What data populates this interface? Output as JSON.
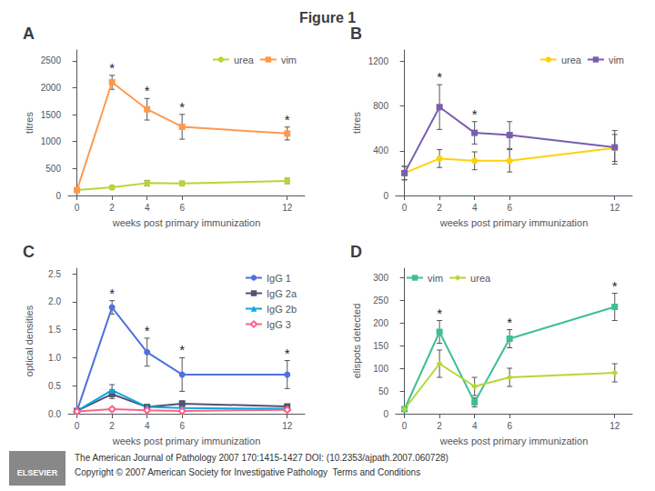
{
  "title": "Figure 1",
  "annotations": [
    "ELSEVIER",
    "The American Journal of Pathology 2007 170:1415-1427 DOI: (10.2353/ajpath.2007.060728)",
    "Copyright © 2007 American Society for Investigative Pathology  Terms and Conditions"
  ],
  "chart_data": [
    {
      "type": "line",
      "title": "A",
      "xlabel": "weeks post primary immunization",
      "ylabel": "titres",
      "x": [
        0,
        2,
        4,
        6,
        12
      ],
      "xlim": [
        -0.5,
        13
      ],
      "xticks": [
        0,
        2,
        4,
        6,
        12
      ],
      "ylim": [
        0,
        2700
      ],
      "yticks": [
        0,
        500,
        1000,
        1500,
        2000,
        2500
      ],
      "grid": false,
      "legend": "upper right",
      "series": [
        {
          "name": "urea",
          "marker": "circle",
          "values": [
            100,
            150,
            230,
            225,
            270
          ],
          "errors": [
            30,
            30,
            50,
            40,
            50
          ]
        },
        {
          "name": "vim",
          "marker": "square",
          "values": [
            100,
            2100,
            1600,
            1275,
            1150
          ],
          "errors": [
            30,
            130,
            200,
            230,
            120
          ],
          "annotations": [
            null,
            "*",
            "*",
            "*",
            "*"
          ]
        }
      ]
    },
    {
      "type": "line",
      "title": "B",
      "xlabel": "weeks post primary immunization",
      "ylabel": "titres",
      "x": [
        0,
        2,
        4,
        6,
        12
      ],
      "xlim": [
        -0.5,
        13
      ],
      "xticks": [
        0,
        2,
        4,
        6,
        12
      ],
      "ylim": [
        0,
        1300
      ],
      "yticks": [
        0,
        400,
        800,
        1200
      ],
      "grid": false,
      "legend": "upper right",
      "series": [
        {
          "name": "urea",
          "marker": "circle",
          "values": [
            200,
            330,
            310,
            310,
            425
          ],
          "errors": [
            60,
            80,
            80,
            100,
            120
          ]
        },
        {
          "name": "vim",
          "marker": "square",
          "values": [
            200,
            790,
            560,
            540,
            430
          ],
          "errors": [
            60,
            200,
            100,
            120,
            150
          ],
          "annotations": [
            null,
            "*",
            "*",
            null,
            null
          ]
        }
      ]
    },
    {
      "type": "line",
      "title": "C",
      "xlabel": "weeks post primary immunization",
      "ylabel": "optical densities",
      "x": [
        0,
        2,
        4,
        6,
        12
      ],
      "xlim": [
        -0.5,
        13
      ],
      "xticks": [
        0,
        2,
        4,
        6,
        12
      ],
      "ylim": [
        0,
        2.6
      ],
      "yticks": [
        {
          "value": 0,
          "label": "0.0"
        },
        0.5,
        {
          "value": 1,
          "label": "1.0"
        },
        1.5,
        {
          "value": 2,
          "label": "2.0"
        },
        2.5
      ],
      "grid": false,
      "legend": "upper right",
      "series": [
        {
          "name": "IgG 1",
          "marker": "circle",
          "values": [
            0.05,
            1.9,
            1.1,
            0.7,
            0.7
          ],
          "errors": [
            0.02,
            0.12,
            0.25,
            0.3,
            0.25
          ],
          "annotations": [
            null,
            "*",
            "*",
            "*",
            "*"
          ]
        },
        {
          "name": "IgG 2a",
          "marker": "square",
          "values": [
            0.05,
            0.35,
            0.12,
            0.18,
            0.13
          ],
          "errors": [
            0.02,
            0.08,
            0.04,
            0.05,
            0.04
          ]
        },
        {
          "name": "IgG 2b",
          "marker": "triangle",
          "values": [
            0.05,
            0.42,
            0.12,
            0.1,
            0.09
          ],
          "errors": [
            0.02,
            0.1,
            0.04,
            0.04,
            0.03
          ]
        },
        {
          "name": "IgG 3",
          "marker": "open_diamond",
          "values": [
            0.04,
            0.08,
            0.06,
            0.05,
            0.07
          ],
          "errors": [
            0.01,
            0.03,
            0.02,
            0.02,
            0.02
          ]
        }
      ]
    },
    {
      "type": "line",
      "title": "D",
      "xlabel": "weeks post primary immunization",
      "ylabel": "elispots detected",
      "x": [
        0,
        2,
        4,
        6,
        12
      ],
      "xlim": [
        -0.5,
        13
      ],
      "xticks": [
        0,
        2,
        4,
        6,
        12
      ],
      "ylim": [
        0,
        320
      ],
      "yticks": [
        0,
        50,
        100,
        150,
        200,
        250,
        300
      ],
      "grid": false,
      "legend": "upper left",
      "series": [
        {
          "name": "vim",
          "marker": "square",
          "values": [
            10,
            180,
            25,
            165,
            235
          ],
          "errors": [
            5,
            25,
            10,
            20,
            30
          ],
          "annotations": [
            null,
            "*",
            null,
            "*",
            "*"
          ]
        },
        {
          "name": "urea",
          "marker": "diamond",
          "values": [
            10,
            110,
            60,
            80,
            90
          ],
          "errors": [
            5,
            30,
            20,
            20,
            20
          ]
        }
      ]
    }
  ]
}
